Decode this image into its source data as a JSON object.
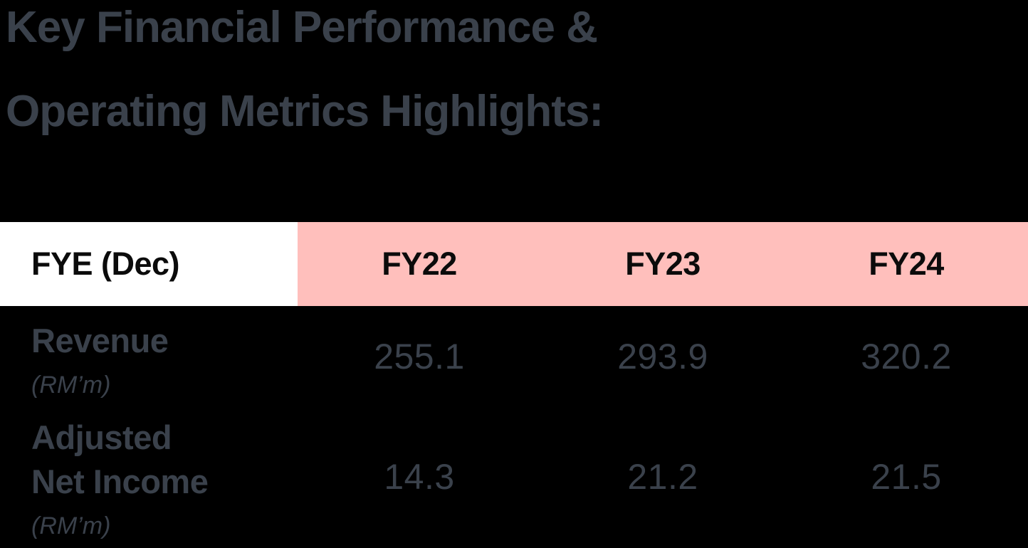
{
  "title": {
    "line1": "Key Financial Performance &",
    "line2": "Operating Metrics Highlights:"
  },
  "table": {
    "header": {
      "label": "FYE (Dec)",
      "columns": [
        "FY22",
        "FY23",
        "FY24"
      ]
    },
    "rows": [
      {
        "name_line1": "Revenue",
        "unit": "(RM’m)",
        "values": [
          "255.1",
          "293.9",
          "320.2"
        ]
      },
      {
        "name_line1": "Adjusted",
        "name_line2": "Net Income",
        "unit": "(RM’m)",
        "values": [
          "14.3",
          "21.2",
          "21.5"
        ]
      }
    ]
  },
  "colors": {
    "background": "#000000",
    "text_slate": "#3A414B",
    "header_pink": "#FFBFBC",
    "header_white": "#FFFFFF",
    "header_text": "#0B0B0B"
  },
  "chart_data": {
    "type": "table",
    "title": "Key Financial Performance & Operating Metrics Highlights:",
    "columns": [
      "FYE (Dec)",
      "FY22",
      "FY23",
      "FY24"
    ],
    "rows": [
      {
        "metric": "Revenue (RM’m)",
        "values": [
          255.1,
          293.9,
          320.2
        ]
      },
      {
        "metric": "Adjusted Net Income (RM’m)",
        "values": [
          14.3,
          21.2,
          21.5
        ]
      }
    ],
    "layout": {
      "header_fill_label": "#FFFFFF",
      "header_fill_years": "#FFBFBC",
      "grid": false
    }
  }
}
